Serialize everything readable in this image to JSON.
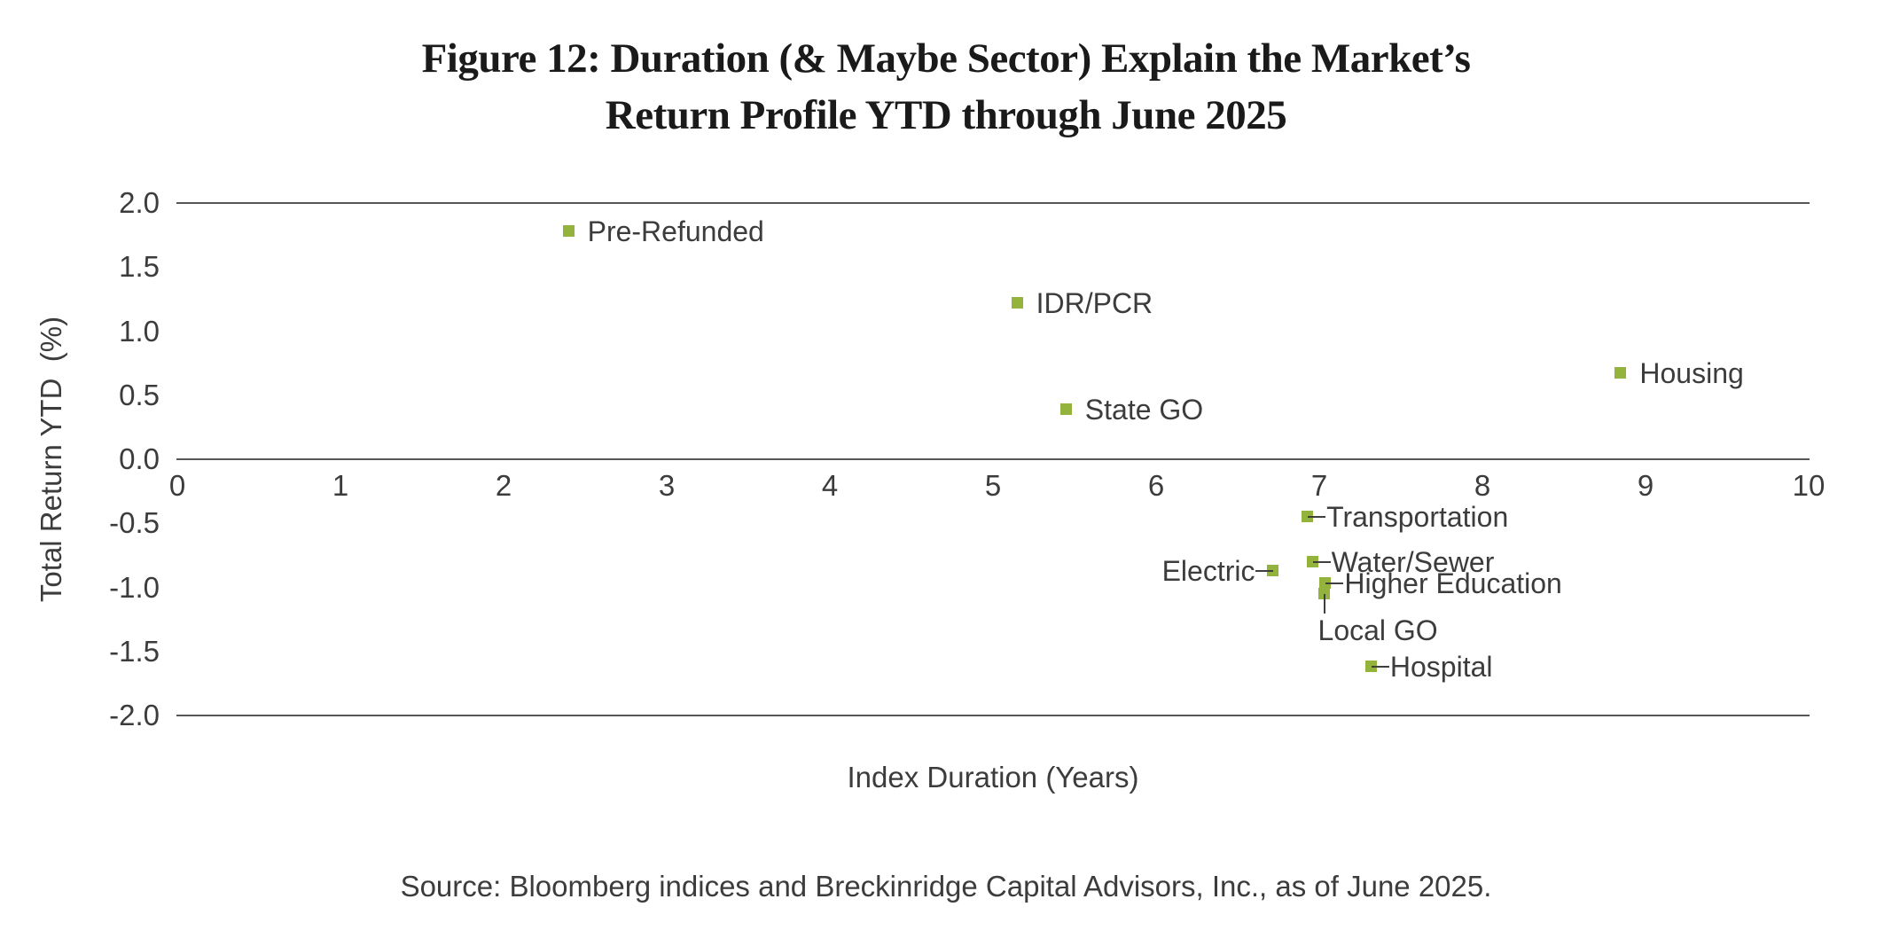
{
  "figure": {
    "title_line1": "Figure 12: Duration (& Maybe Sector) Explain the Market’s",
    "title_line2": "Return Profile YTD through June 2025",
    "source": "Source: Bloomberg indices and Breckinridge Capital Advisors, Inc., as of June 2025."
  },
  "colors": {
    "marker_green": "#93b33c",
    "axis_line": "#565656",
    "leader_line": "#3f3f3f",
    "text": "#3c3c3c",
    "title_text": "#1a1a1a"
  },
  "chart_data": {
    "type": "scatter",
    "title": "Figure 12: Duration (& Maybe Sector) Explain the Market’s Return Profile YTD through June 2025",
    "xlabel": "Index Duration (Years)",
    "ylabel": "Total Return YTD  (%)",
    "xlim": [
      0,
      10
    ],
    "ylim": [
      -2.0,
      2.0
    ],
    "xticks": [
      0,
      1,
      2,
      3,
      4,
      5,
      6,
      7,
      8,
      9,
      10
    ],
    "yticks": [
      "2.0",
      "1.5",
      "1.0",
      "0.5",
      "0.0",
      "-0.5",
      "-1.0",
      "-1.5",
      "-2.0"
    ],
    "gridlines_y": [
      2.0,
      0.0,
      -2.0
    ],
    "grid": "horizontal lines at 2.0, 0.0 and -2.0 only; no vertical axis line; no tick marks",
    "legend": "none; each point labeled directly",
    "points": [
      {
        "label": "Pre-Refunded",
        "x": 2.4,
        "y": 1.78,
        "label_side": "right",
        "leader": false
      },
      {
        "label": "IDR/PCR",
        "x": 5.15,
        "y": 1.22,
        "label_side": "right",
        "leader": false
      },
      {
        "label": "State GO",
        "x": 5.45,
        "y": 0.39,
        "label_side": "right",
        "leader": false
      },
      {
        "label": "Housing",
        "x": 8.85,
        "y": 0.67,
        "label_side": "right",
        "leader": false
      },
      {
        "label": "Transportation",
        "x": 6.93,
        "y": -0.45,
        "label_side": "right",
        "leader": true
      },
      {
        "label": "Water/Sewer",
        "x": 6.96,
        "y": -0.8,
        "label_side": "right",
        "leader": true
      },
      {
        "label": "Electric",
        "x": 6.72,
        "y": -0.87,
        "label_side": "left",
        "leader": true
      },
      {
        "label": "Higher Education",
        "x": 7.04,
        "y": -0.97,
        "label_side": "right",
        "leader": true
      },
      {
        "label": "Local GO",
        "x": 7.03,
        "y": -1.05,
        "label_side": "below",
        "leader": true
      },
      {
        "label": "Hospital",
        "x": 7.32,
        "y": -1.62,
        "label_side": "right",
        "leader": true
      }
    ]
  }
}
